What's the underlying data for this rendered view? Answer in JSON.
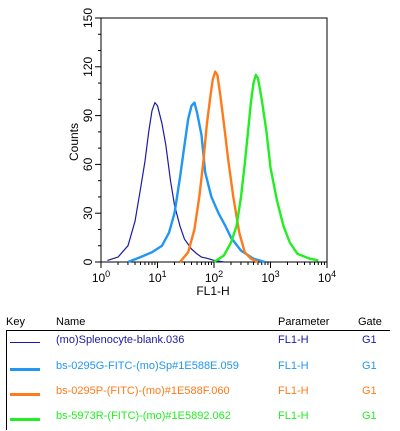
{
  "chart_data": {
    "type": "line",
    "xlabel": "FL1-H",
    "ylabel": "Counts",
    "xscale": "log",
    "xlim": [
      1,
      10000
    ],
    "ylim": [
      0,
      150
    ],
    "x_ticks": [
      1,
      10,
      100,
      1000,
      10000
    ],
    "y_ticks": [
      0,
      30,
      60,
      90,
      120,
      150
    ],
    "grid": false,
    "series": [
      {
        "name": "(mo)Splenocyte-blank.036",
        "color": "#1a1aa6",
        "x": [
          1.3,
          2,
          3,
          4,
          5,
          6,
          7,
          8,
          9,
          10,
          12,
          14,
          17,
          20,
          25,
          30,
          40,
          50,
          60,
          80,
          100,
          150
        ],
        "y": [
          1,
          3,
          10,
          25,
          45,
          62,
          80,
          93,
          98,
          96,
          85,
          72,
          50,
          35,
          22,
          14,
          8,
          5,
          3,
          2,
          1,
          0
        ]
      },
      {
        "name": "bs-0295G-FITC-(mo)Sp#1E588E.059",
        "color": "#2196f3",
        "x": [
          3,
          5,
          8,
          12,
          16,
          20,
          25,
          30,
          35,
          40,
          45,
          50,
          60,
          70,
          90,
          120,
          160,
          200,
          300,
          500,
          800
        ],
        "y": [
          0,
          3,
          6,
          10,
          18,
          30,
          52,
          72,
          88,
          96,
          98,
          92,
          78,
          55,
          40,
          30,
          22,
          15,
          7,
          2,
          0
        ]
      },
      {
        "name": "bs-0295P-(FITC)-(mo)#1E588F.060",
        "color": "#ff7a1a",
        "x": [
          25,
          35,
          45,
          55,
          65,
          75,
          85,
          95,
          105,
          115,
          130,
          150,
          180,
          220,
          280,
          350,
          450,
          600
        ],
        "y": [
          0,
          6,
          20,
          40,
          62,
          85,
          100,
          112,
          117,
          115,
          102,
          85,
          62,
          40,
          18,
          6,
          2,
          0
        ]
      },
      {
        "name": "bs-5973R-(FITC)-(mo)#1E5892.062",
        "color": "#22ee22",
        "x": [
          100,
          150,
          200,
          250,
          300,
          350,
          400,
          450,
          500,
          550,
          600,
          700,
          850,
          1000,
          1300,
          1700,
          2200,
          3000,
          5000,
          7000
        ],
        "y": [
          0,
          4,
          12,
          22,
          40,
          60,
          80,
          98,
          110,
          115,
          113,
          100,
          80,
          58,
          38,
          22,
          12,
          5,
          2,
          1
        ]
      }
    ]
  },
  "legend": {
    "headers": {
      "key": "Key",
      "name": "Name",
      "parameter": "Parameter",
      "gate": "Gate"
    },
    "rows": [
      {
        "name": "(mo)Splenocyte-blank.036",
        "parameter": "FL1-H",
        "gate": "G1",
        "color": "#1a1aa6"
      },
      {
        "name": "bs-0295G-FITC-(mo)Sp#1E588E.059",
        "parameter": "FL1-H",
        "gate": "G1",
        "color": "#2196f3"
      },
      {
        "name": "bs-0295P-(FITC)-(mo)#1E588F.060",
        "parameter": "FL1-H",
        "gate": "G1",
        "color": "#ff7a1a"
      },
      {
        "name": "bs-5973R-(FITC)-(mo)#1E5892.062",
        "parameter": "FL1-H",
        "gate": "G1",
        "color": "#22ee22"
      }
    ]
  }
}
